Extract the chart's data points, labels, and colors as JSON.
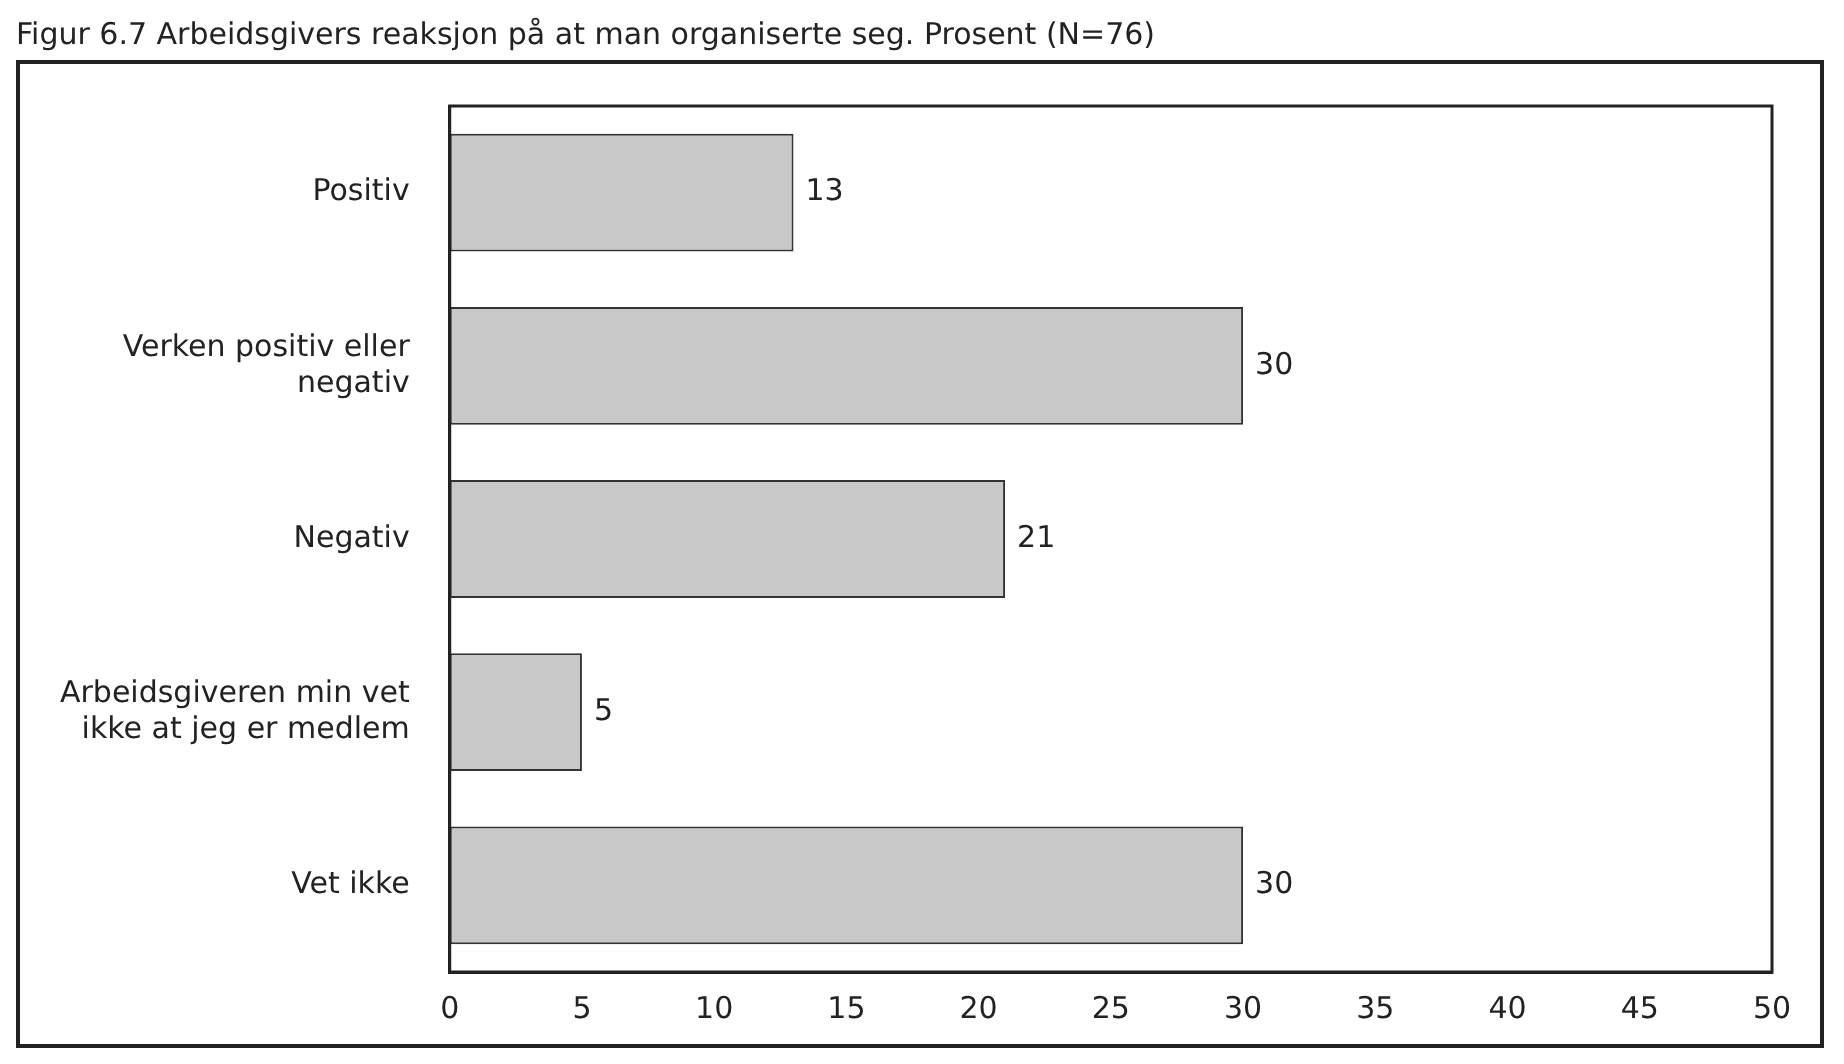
{
  "chart_data": {
    "type": "bar",
    "orientation": "horizontal",
    "title": "Figur 6.7 Arbeidsgivers reaksjon på at man organiserte seg. Prosent (N=76)",
    "categories": [
      "Positiv",
      "Verken positiv eller negativ",
      "Negativ",
      "Arbeidsgiveren min vet ikke at jeg er medlem",
      "Vet ikke"
    ],
    "values": [
      13,
      30,
      21,
      5,
      30
    ],
    "color": "#c8c8c8",
    "xlim": [
      0,
      50
    ],
    "xticks": [
      0,
      5,
      10,
      15,
      20,
      25,
      30,
      35,
      40,
      45,
      50
    ],
    "grid": false,
    "legend": false,
    "data_labels": true
  }
}
